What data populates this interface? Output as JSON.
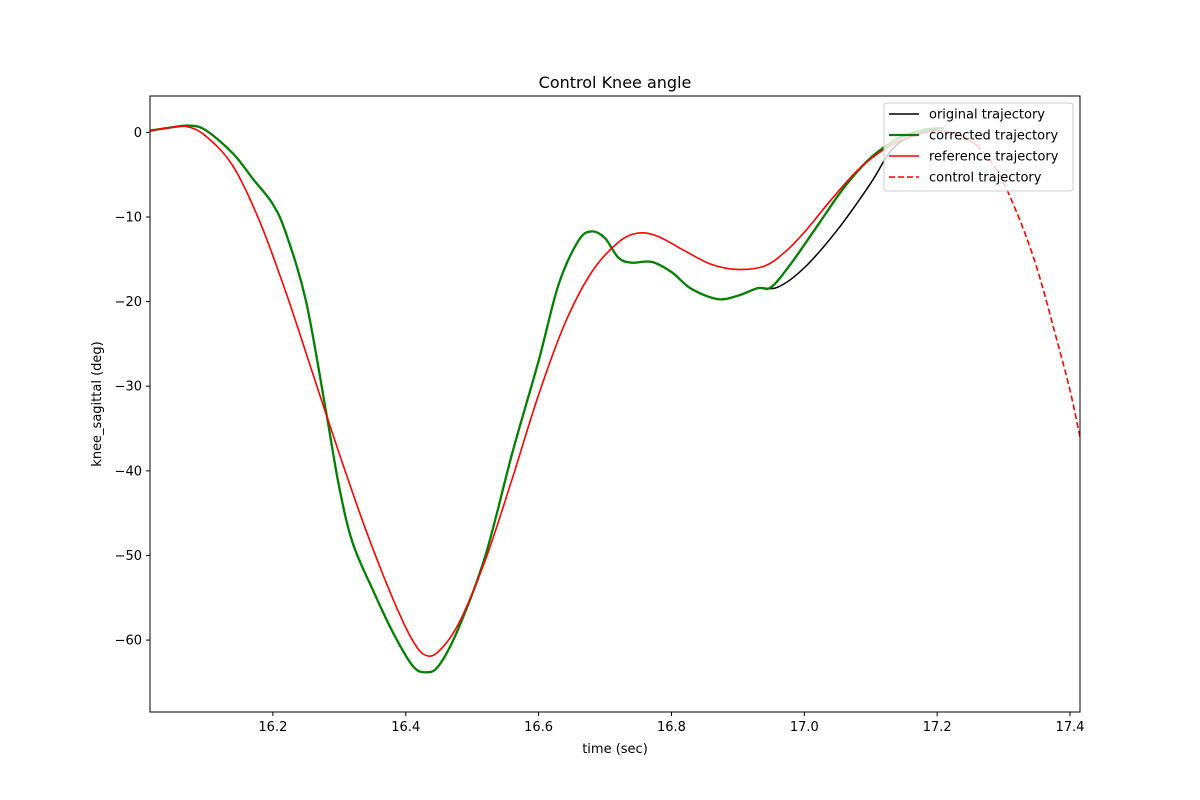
{
  "chart_data": {
    "type": "line",
    "title": "Control Knee angle",
    "xlabel": "time (sec)",
    "ylabel": "knee_sagittal (deg)",
    "xlim": [
      16.015,
      17.415
    ],
    "ylim": [
      -68.5,
      4.3
    ],
    "xticks": [
      16.2,
      16.4,
      16.6,
      16.8,
      17.0,
      17.2,
      17.4
    ],
    "xtick_labels": [
      "16.2",
      "16.4",
      "16.6",
      "16.8",
      "17.0",
      "17.2",
      "17.4"
    ],
    "yticks": [
      0,
      -10,
      -20,
      -30,
      -40,
      -50,
      -60
    ],
    "ytick_labels": [
      "0",
      "−10",
      "−20",
      "−30",
      "−40",
      "−50",
      "−60"
    ],
    "grid": false,
    "legend_position": "upper-right",
    "series": [
      {
        "name": "original trajectory",
        "color": "#000000",
        "style": "solid",
        "points": [
          [
            16.015,
            0.2
          ],
          [
            16.04,
            0.5
          ],
          [
            16.075,
            0.8
          ],
          [
            16.1,
            0.2
          ],
          [
            16.14,
            -2.5
          ],
          [
            16.17,
            -5.5
          ],
          [
            16.2,
            -8.5
          ],
          [
            16.22,
            -12
          ],
          [
            16.25,
            -20
          ],
          [
            16.28,
            -33
          ],
          [
            16.3,
            -42
          ],
          [
            16.32,
            -48.5
          ],
          [
            16.35,
            -54
          ],
          [
            16.38,
            -59
          ],
          [
            16.41,
            -63
          ],
          [
            16.43,
            -63.8
          ],
          [
            16.45,
            -63
          ],
          [
            16.48,
            -58.5
          ],
          [
            16.52,
            -50
          ],
          [
            16.56,
            -38
          ],
          [
            16.6,
            -27
          ],
          [
            16.63,
            -18
          ],
          [
            16.66,
            -12.8
          ],
          [
            16.68,
            -11.7
          ],
          [
            16.7,
            -12.5
          ],
          [
            16.72,
            -14.8
          ],
          [
            16.74,
            -15.4
          ],
          [
            16.77,
            -15.3
          ],
          [
            16.8,
            -16.5
          ],
          [
            16.83,
            -18.5
          ],
          [
            16.87,
            -19.7
          ],
          [
            16.9,
            -19.3
          ],
          [
            16.93,
            -18.4
          ],
          [
            16.96,
            -18.3
          ],
          [
            17.0,
            -16
          ],
          [
            17.05,
            -11.5
          ],
          [
            17.1,
            -6
          ],
          [
            17.13,
            -2.2
          ],
          [
            17.16,
            -0.5
          ],
          [
            17.2,
            0.4
          ]
        ]
      },
      {
        "name": "corrected trajectory",
        "color": "#008000",
        "style": "solid",
        "points": [
          [
            16.015,
            0.2
          ],
          [
            16.04,
            0.5
          ],
          [
            16.075,
            0.8
          ],
          [
            16.1,
            0.2
          ],
          [
            16.14,
            -2.5
          ],
          [
            16.17,
            -5.5
          ],
          [
            16.2,
            -8.5
          ],
          [
            16.22,
            -12
          ],
          [
            16.25,
            -20
          ],
          [
            16.28,
            -33
          ],
          [
            16.3,
            -42
          ],
          [
            16.32,
            -48.5
          ],
          [
            16.35,
            -54
          ],
          [
            16.38,
            -59
          ],
          [
            16.41,
            -63
          ],
          [
            16.43,
            -63.8
          ],
          [
            16.45,
            -63
          ],
          [
            16.48,
            -58.5
          ],
          [
            16.52,
            -50
          ],
          [
            16.56,
            -38
          ],
          [
            16.6,
            -27
          ],
          [
            16.63,
            -18
          ],
          [
            16.66,
            -12.8
          ],
          [
            16.68,
            -11.7
          ],
          [
            16.7,
            -12.5
          ],
          [
            16.72,
            -14.8
          ],
          [
            16.74,
            -15.4
          ],
          [
            16.77,
            -15.3
          ],
          [
            16.8,
            -16.5
          ],
          [
            16.83,
            -18.5
          ],
          [
            16.87,
            -19.7
          ],
          [
            16.9,
            -19.3
          ],
          [
            16.93,
            -18.4
          ],
          [
            16.95,
            -18.3
          ],
          [
            16.98,
            -15.5
          ],
          [
            17.02,
            -11
          ],
          [
            17.06,
            -6.5
          ],
          [
            17.1,
            -3
          ],
          [
            17.14,
            -0.8
          ],
          [
            17.18,
            0.3
          ],
          [
            17.21,
            0.5
          ]
        ]
      },
      {
        "name": "reference trajectory",
        "color": "#ff0000",
        "style": "solid",
        "points": [
          [
            16.015,
            0.2
          ],
          [
            16.04,
            0.5
          ],
          [
            16.07,
            0.7
          ],
          [
            16.1,
            -0.5
          ],
          [
            16.14,
            -4
          ],
          [
            16.18,
            -10.5
          ],
          [
            16.22,
            -19
          ],
          [
            16.26,
            -28.5
          ],
          [
            16.3,
            -38
          ],
          [
            16.34,
            -47
          ],
          [
            16.38,
            -55
          ],
          [
            16.41,
            -60
          ],
          [
            16.43,
            -61.8
          ],
          [
            16.45,
            -61.3
          ],
          [
            16.48,
            -58
          ],
          [
            16.52,
            -50.5
          ],
          [
            16.56,
            -41
          ],
          [
            16.6,
            -31
          ],
          [
            16.64,
            -22.5
          ],
          [
            16.68,
            -16.5
          ],
          [
            16.72,
            -13
          ],
          [
            16.75,
            -11.9
          ],
          [
            16.78,
            -12.3
          ],
          [
            16.82,
            -14
          ],
          [
            16.86,
            -15.6
          ],
          [
            16.9,
            -16.2
          ],
          [
            16.94,
            -15.8
          ],
          [
            16.97,
            -14.2
          ],
          [
            17.0,
            -11.8
          ],
          [
            17.04,
            -8
          ],
          [
            17.08,
            -4.5
          ],
          [
            17.12,
            -2
          ],
          [
            17.16,
            -0.5
          ],
          [
            17.2,
            0.2
          ],
          [
            17.23,
            -0.2
          ],
          [
            17.26,
            -1.5
          ]
        ]
      },
      {
        "name": "control trajectory",
        "color": "#ff0000",
        "style": "dashed",
        "points": [
          [
            17.26,
            -1.5
          ],
          [
            17.29,
            -4.5
          ],
          [
            17.32,
            -9.5
          ],
          [
            17.35,
            -16
          ],
          [
            17.38,
            -24.5
          ],
          [
            17.4,
            -30.5
          ],
          [
            17.415,
            -36
          ]
        ]
      }
    ]
  }
}
